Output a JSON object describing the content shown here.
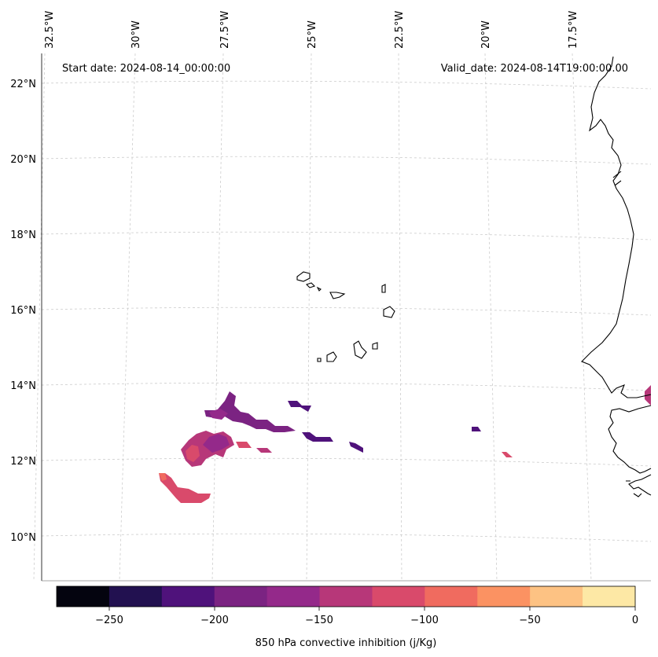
{
  "annotations": {
    "start_date": "Start date: 2024-08-14_00:00:00",
    "valid_date": "Valid_date: 2024-08-14T19:00:00.00"
  },
  "map": {
    "projection": "lambert-conic",
    "lon_ticks": [
      "32.5°W",
      "30°W",
      "27.5°W",
      "25°W",
      "22.5°W",
      "20°W",
      "17.5°W"
    ],
    "lat_ticks": [
      "22°N",
      "20°N",
      "18°N",
      "16°N",
      "14°N",
      "12°N",
      "10°N"
    ],
    "gridlines": true,
    "features": [
      "coastline-africa",
      "cape-verde-islands"
    ]
  },
  "colorbar": {
    "label": "850 hPa convective inhibition (j/Kg)",
    "ticks": [
      "−250",
      "−200",
      "−150",
      "−100",
      "−50",
      "0"
    ],
    "range": [
      -275,
      0
    ],
    "step": 25,
    "colors": [
      "#04040f",
      "#221150",
      "#4f127b",
      "#7b2382",
      "#94298a",
      "#b73779",
      "#d94a6b",
      "#f06b5f",
      "#fb9262",
      "#fdc283",
      "#fde8a5"
    ]
  },
  "chart_data": {
    "type": "heatmap",
    "variable": "850 hPa convective inhibition (j/Kg)",
    "units": "j/Kg",
    "regions": [
      {
        "lon": -28.5,
        "lat": 12.3,
        "value": -110
      },
      {
        "lon": -27.5,
        "lat": 12.5,
        "value": -135
      },
      {
        "lon": -26.7,
        "lat": 13.2,
        "value": -165
      },
      {
        "lon": -24.5,
        "lat": 12.9,
        "value": -170
      },
      {
        "lon": -23.5,
        "lat": 13.4,
        "value": -215
      },
      {
        "lon": -22.5,
        "lat": 12.6,
        "value": -230
      },
      {
        "lon": -21.3,
        "lat": 12.3,
        "value": -215
      },
      {
        "lon": -28.5,
        "lat": 11.2,
        "value": -110
      },
      {
        "lon": -18.8,
        "lat": 12.8,
        "value": -215
      },
      {
        "lon": -18.3,
        "lat": 12.1,
        "value": -120
      },
      {
        "lon": -14.2,
        "lat": 13.6,
        "value": -135
      }
    ]
  }
}
